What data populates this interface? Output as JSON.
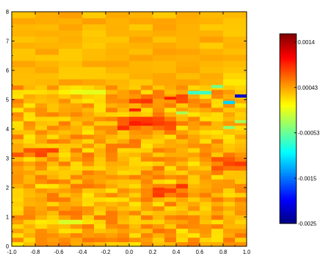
{
  "chart_data": {
    "type": "heatmap",
    "title": "",
    "xlabel": "",
    "ylabel": "",
    "xlim": [
      -1.0,
      1.0
    ],
    "ylim": [
      0,
      8
    ],
    "x_ticks": [
      "-1.0",
      "-0.8",
      "-0.6",
      "-0.4",
      "-0.2",
      "0.0",
      "0.2",
      "0.4",
      "0.6",
      "0.8",
      "1.0"
    ],
    "y_ticks": [
      "0",
      "1",
      "2",
      "3",
      "4",
      "5",
      "6",
      "7",
      "8"
    ],
    "colorbar": {
      "min": -0.0025,
      "max": 0.0014,
      "tick_labels": [
        "0.0014",
        "0.00043",
        "-0.00053",
        "-0.0015",
        "-0.0025"
      ],
      "colormap": "jet",
      "position": "right"
    },
    "grid_shape": {
      "cols": 20,
      "rows": 36
    },
    "notes_visible": "mostly near-zero values (yellow) with orange bands around y=1.8-5.4 and cyan/blue features near x=0.6-1.0, y=4.7-5.2",
    "anomalies": [
      {
        "x": [
          0.9,
          1.0
        ],
        "y": [
          5.07,
          5.18
        ],
        "value": -0.0022
      },
      {
        "x": [
          0.8,
          0.9
        ],
        "y": [
          4.85,
          4.96
        ],
        "value": -0.0012
      },
      {
        "x": [
          0.5,
          0.7
        ],
        "y": [
          5.18,
          5.3
        ],
        "value": -0.0008
      },
      {
        "x": [
          0.7,
          0.8
        ],
        "y": [
          5.4,
          5.5
        ],
        "value": -0.0006
      },
      {
        "x": [
          0.8,
          0.9
        ],
        "y": [
          4.0,
          4.1
        ],
        "value": -0.0005
      },
      {
        "x": [
          0.4,
          0.5
        ],
        "y": [
          4.5,
          4.6
        ],
        "value": -0.0004
      },
      {
        "x": [
          0.9,
          1.0
        ],
        "y": [
          4.2,
          4.3
        ],
        "value": -0.0004
      },
      {
        "x": [
          0.0,
          0.1
        ],
        "y": [
          4.6,
          4.7
        ],
        "value": 0.0008
      },
      {
        "x": [
          0.1,
          0.2
        ],
        "y": [
          4.2,
          4.3
        ],
        "value": 0.0007
      },
      {
        "x": [
          0.3,
          0.4
        ],
        "y": [
          5.0,
          5.1
        ],
        "value": 0.0008
      },
      {
        "x": [
          0.2,
          0.3
        ],
        "y": [
          1.9,
          2.0
        ],
        "value": 0.0007
      }
    ]
  }
}
